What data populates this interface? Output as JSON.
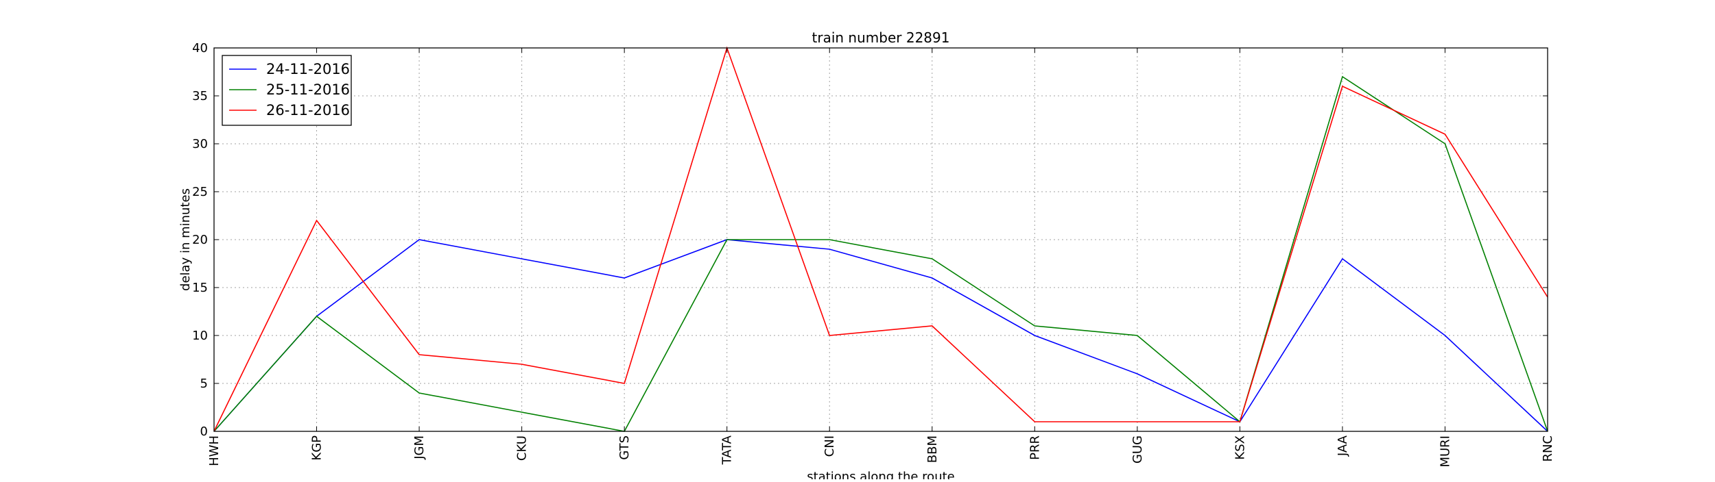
{
  "chart_data": {
    "type": "line",
    "title": "train number 22891",
    "xlabel": "stations along the route",
    "ylabel": "delay in minutes",
    "categories": [
      "HWH",
      "KGP",
      "JGM",
      "CKU",
      "GTS",
      "TATA",
      "CNI",
      "BBM",
      "PRR",
      "GUG",
      "KSX",
      "JAA",
      "MURI",
      "RNC"
    ],
    "ylim": [
      0,
      40
    ],
    "yticks": [
      0,
      5,
      10,
      15,
      20,
      25,
      30,
      35,
      40
    ],
    "grid": true,
    "legend_position": "top-left",
    "series": [
      {
        "name": "24-11-2016",
        "color": "#0000ff",
        "values": [
          0,
          12,
          20,
          18,
          16,
          20,
          19,
          16,
          10,
          6,
          1,
          18,
          10,
          0
        ]
      },
      {
        "name": "25-11-2016",
        "color": "#008000",
        "values": [
          0,
          12,
          4,
          2,
          0,
          20,
          20,
          18,
          11,
          10,
          1,
          37,
          30,
          0
        ]
      },
      {
        "name": "26-11-2016",
        "color": "#ff0000",
        "values": [
          0,
          22,
          8,
          7,
          5,
          40,
          10,
          11,
          1,
          1,
          1,
          36,
          31,
          14
        ]
      }
    ]
  }
}
